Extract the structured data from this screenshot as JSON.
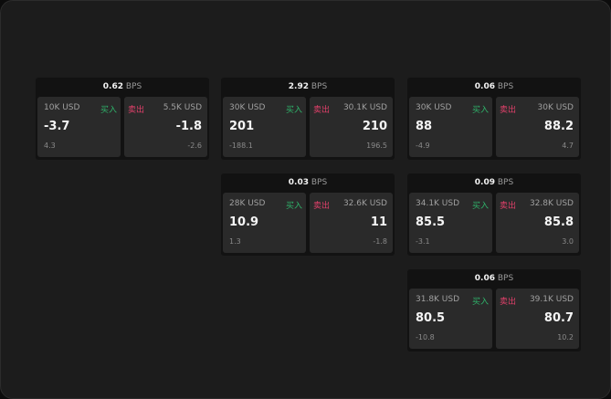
{
  "unit_label": "BPS",
  "buy_label": "买入",
  "sell_label": "卖出",
  "colors": {
    "buy": "#2fb36a",
    "sell": "#e0406a",
    "background": "#1c1c1c"
  },
  "cards": [
    {
      "row": 0,
      "col": 0,
      "spread": "0.62",
      "buy": {
        "size": "10K USD",
        "price": "-3.7",
        "change": "4.3"
      },
      "sell": {
        "size": "5.5K USD",
        "price": "-1.8",
        "change": "-2.6"
      }
    },
    {
      "row": 0,
      "col": 1,
      "spread": "2.92",
      "buy": {
        "size": "30K USD",
        "price": "201",
        "change": "-188.1"
      },
      "sell": {
        "size": "30.1K USD",
        "price": "210",
        "change": "196.5"
      }
    },
    {
      "row": 0,
      "col": 2,
      "spread": "0.06",
      "buy": {
        "size": "30K USD",
        "price": "88",
        "change": "-4.9"
      },
      "sell": {
        "size": "30K USD",
        "price": "88.2",
        "change": "4.7"
      }
    },
    {
      "row": 1,
      "col": 1,
      "spread": "0.03",
      "buy": {
        "size": "28K USD",
        "price": "10.9",
        "change": "1.3"
      },
      "sell": {
        "size": "32.6K USD",
        "price": "11",
        "change": "-1.8"
      }
    },
    {
      "row": 1,
      "col": 2,
      "spread": "0.09",
      "buy": {
        "size": "34.1K USD",
        "price": "85.5",
        "change": "-3.1"
      },
      "sell": {
        "size": "32.8K USD",
        "price": "85.8",
        "change": "3.0"
      }
    },
    {
      "row": 2,
      "col": 2,
      "spread": "0.06",
      "buy": {
        "size": "31.8K USD",
        "price": "80.5",
        "change": "-10.8"
      },
      "sell": {
        "size": "39.1K USD",
        "price": "80.7",
        "change": "10.2"
      }
    }
  ]
}
